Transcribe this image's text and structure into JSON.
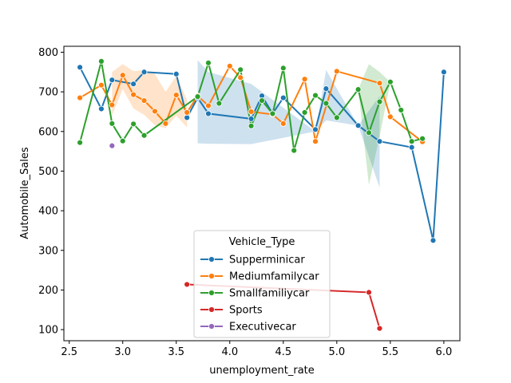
{
  "chart_data": {
    "type": "line",
    "xlabel": "unemployment_rate",
    "ylabel": "Automobile_Sales",
    "xlim": [
      2.45,
      6.15
    ],
    "ylim": [
      72,
      815
    ],
    "xticks": [
      2.5,
      3.0,
      3.5,
      4.0,
      4.5,
      5.0,
      5.5,
      6.0
    ],
    "xtick_labels": [
      "2.5",
      "3.0",
      "3.5",
      "4.0",
      "4.5",
      "5.0",
      "5.5",
      "6.0"
    ],
    "yticks": [
      100,
      200,
      300,
      400,
      500,
      600,
      700,
      800
    ],
    "ytick_labels": [
      "100",
      "200",
      "300",
      "400",
      "500",
      "600",
      "700",
      "800"
    ],
    "grid": false,
    "legend": {
      "title": "Vehicle_Type",
      "placement": "lower-center",
      "entries": [
        "Supperminicar",
        "Mediumfamilycar",
        "Smallfamiliycar",
        "Sports",
        "Executivecar"
      ]
    },
    "series": [
      {
        "name": "Supperminicar",
        "color": "#1f77b4",
        "x": [
          2.6,
          2.8,
          2.9,
          3.1,
          3.2,
          3.5,
          3.6,
          3.7,
          3.8,
          4.2,
          4.3,
          4.4,
          4.5,
          4.8,
          4.9,
          5.2,
          5.4,
          5.7,
          5.9,
          6.0
        ],
        "y": [
          762,
          657,
          730,
          720,
          750,
          745,
          635,
          685,
          645,
          632,
          690,
          645,
          685,
          605,
          708,
          615,
          575,
          560,
          325,
          750
        ],
        "band": [
          [
            3.7,
            570,
            780
          ],
          [
            3.8,
            569,
            750
          ],
          [
            4.2,
            568,
            720
          ],
          [
            4.8,
            600,
            600
          ],
          [
            4.9,
            628,
            755
          ],
          [
            5.2,
            615,
            615
          ],
          [
            5.4,
            458,
            690
          ]
        ]
      },
      {
        "name": "Mediumfamilycar",
        "color": "#ff7f0e",
        "x": [
          2.6,
          2.8,
          2.9,
          3.0,
          3.1,
          3.2,
          3.3,
          3.4,
          3.5,
          3.6,
          3.7,
          3.8,
          4.0,
          4.1,
          4.2,
          4.4,
          4.5,
          4.7,
          4.8,
          5.0,
          5.4,
          5.5,
          5.8
        ],
        "y": [
          685,
          717,
          667,
          742,
          693,
          678,
          651,
          620,
          692,
          648,
          690,
          665,
          765,
          736,
          650,
          643,
          620,
          732,
          575,
          752,
          722,
          637,
          574
        ],
        "band": [
          [
            2.9,
            640,
            750
          ],
          [
            3.0,
            707,
            770
          ],
          [
            3.1,
            658,
            752
          ],
          [
            3.2,
            642,
            755
          ],
          [
            3.3,
            616,
            745
          ],
          [
            3.4,
            608,
            700
          ],
          [
            3.5,
            640,
            740
          ],
          [
            3.6,
            610,
            680
          ]
        ]
      },
      {
        "name": "Smallfamiliycar",
        "color": "#2ca02c",
        "x": [
          2.6,
          2.8,
          2.9,
          3.0,
          3.1,
          3.2,
          3.7,
          3.8,
          3.9,
          4.1,
          4.2,
          4.3,
          4.4,
          4.5,
          4.6,
          4.7,
          4.8,
          4.9,
          5.0,
          5.2,
          5.3,
          5.4,
          5.5,
          5.6,
          5.7,
          5.8
        ],
        "y": [
          572,
          777,
          620,
          576,
          619,
          590,
          688,
          773,
          671,
          756,
          614,
          678,
          645,
          760,
          552,
          648,
          691,
          671,
          635,
          706,
          597,
          675,
          725,
          654,
          575,
          582
        ],
        "band": [
          [
            5.2,
            706,
            706
          ],
          [
            5.3,
            465,
            770
          ],
          [
            5.4,
            588,
            750
          ],
          [
            5.5,
            725,
            725
          ]
        ]
      },
      {
        "name": "Sports",
        "color": "#d62728",
        "x": [
          3.6,
          5.3,
          5.4
        ],
        "y": [
          214,
          194,
          103
        ],
        "band": []
      },
      {
        "name": "Executivecar",
        "color": "#9467bd",
        "x": [
          2.9
        ],
        "y": [
          564
        ],
        "band": []
      }
    ]
  }
}
